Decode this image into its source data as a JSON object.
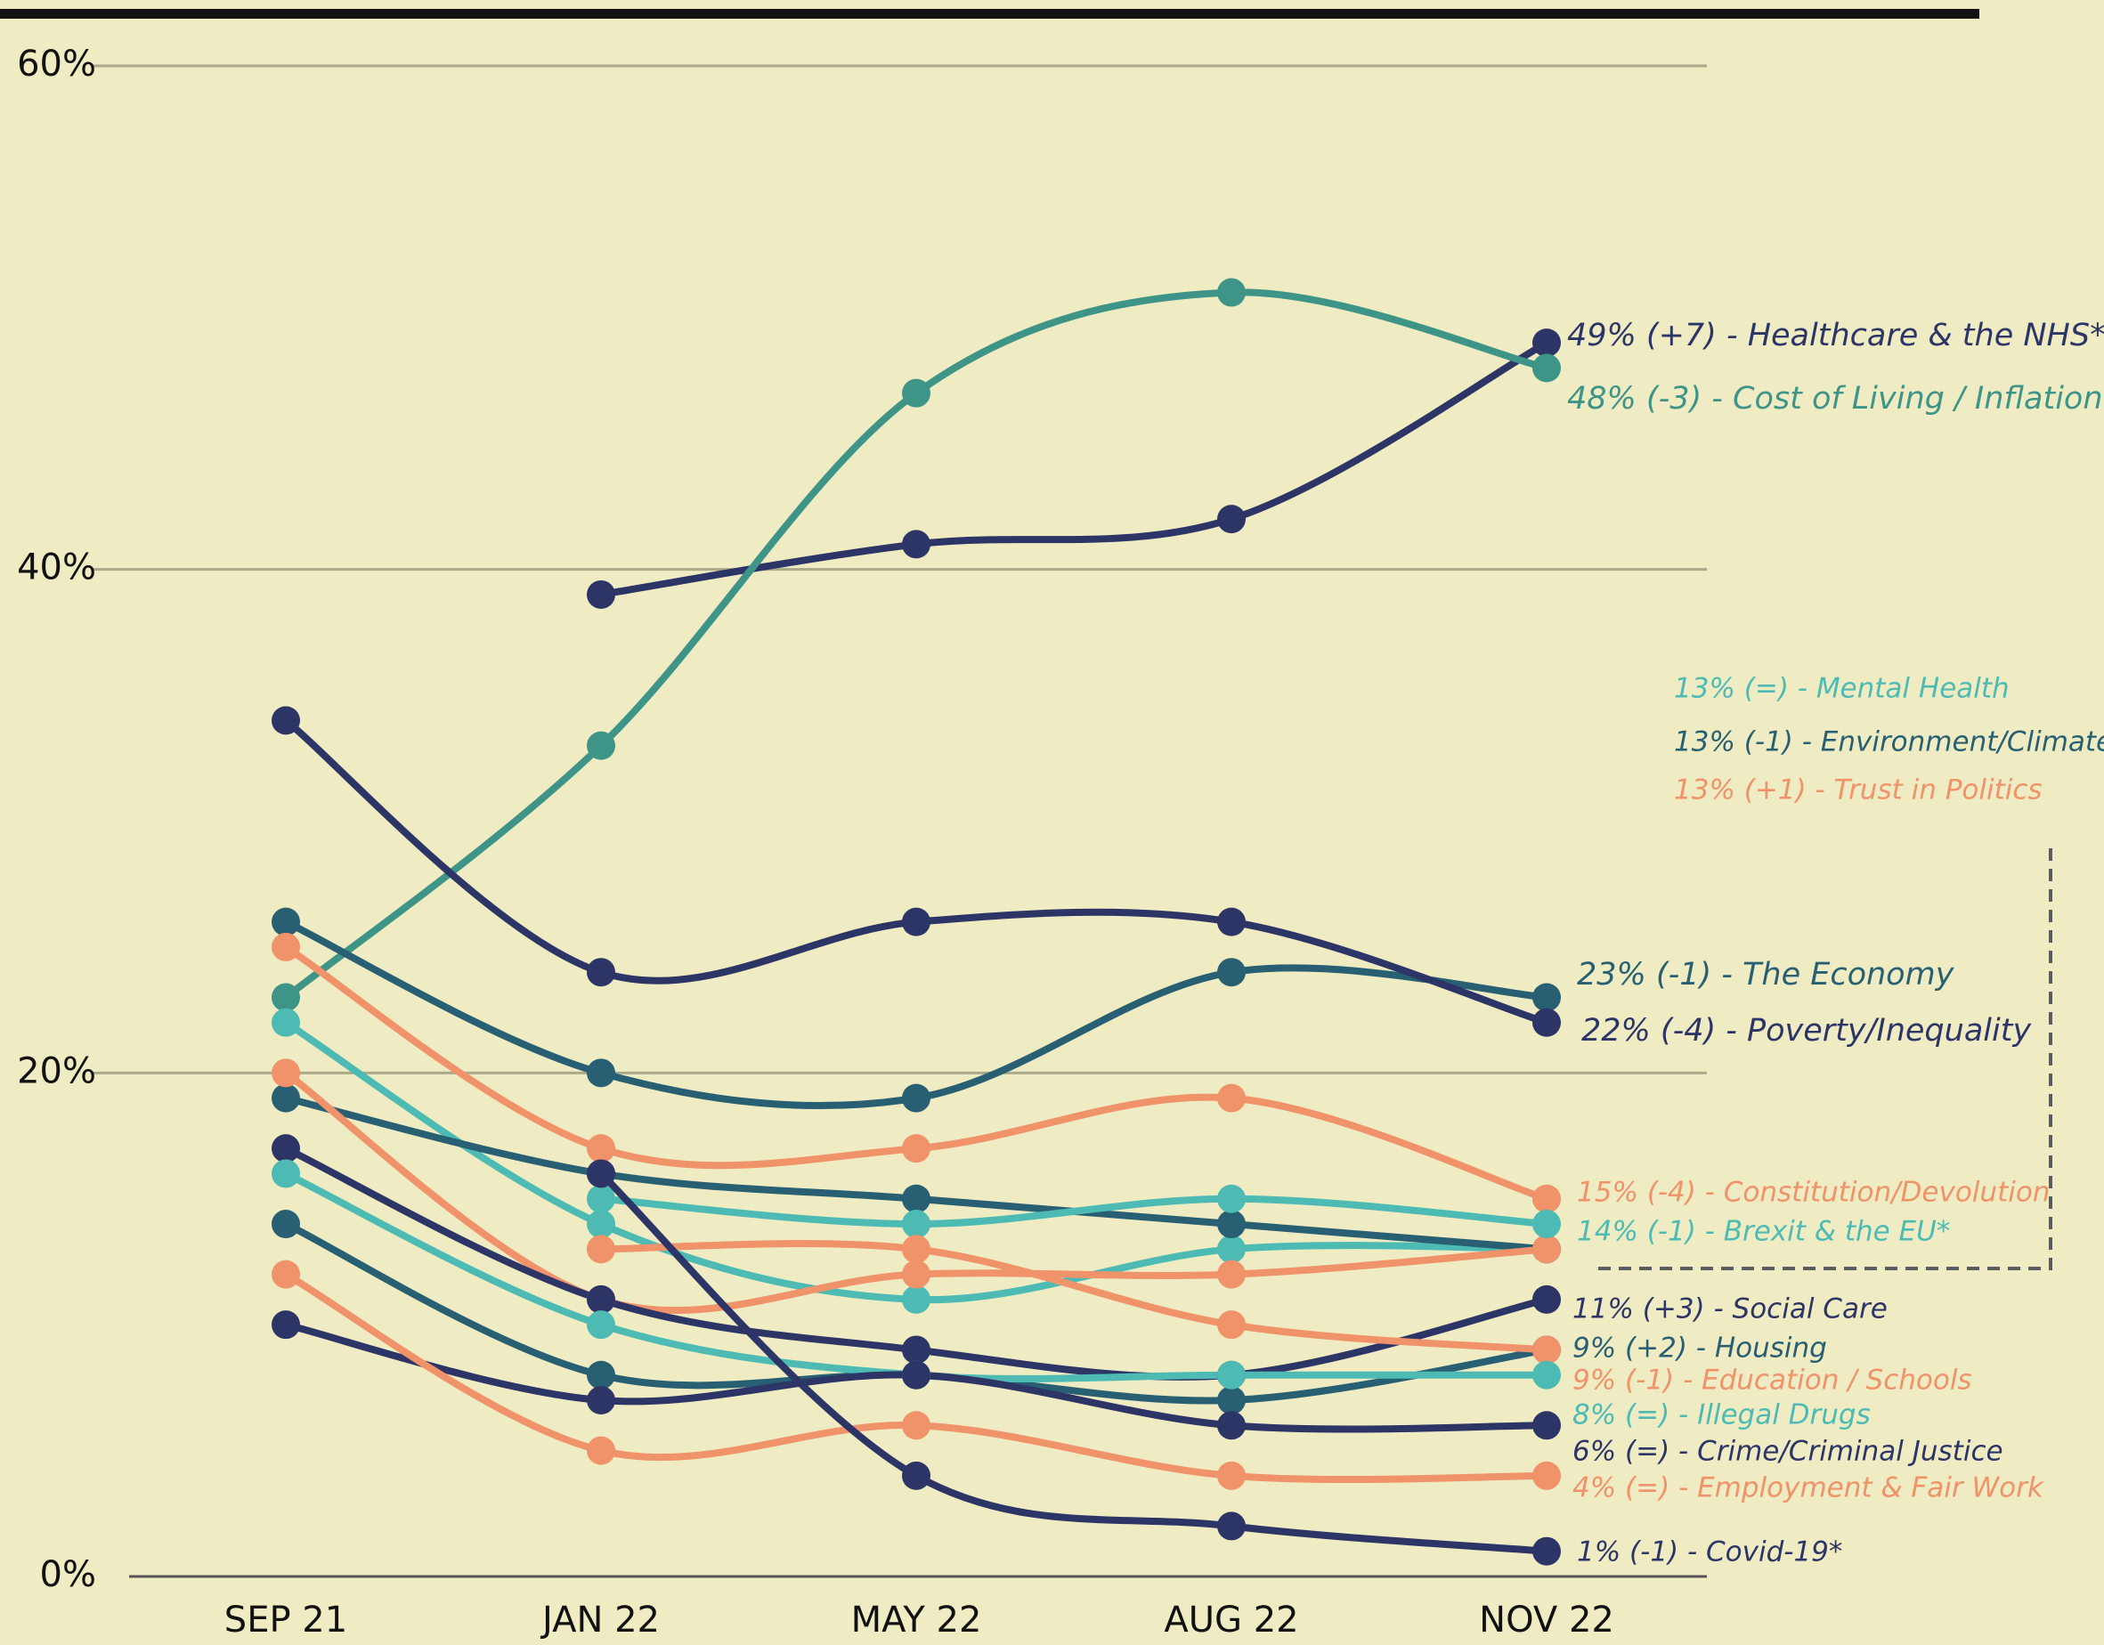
{
  "chart_data": {
    "type": "line",
    "categories": [
      "SEP 21",
      "JAN 22",
      "MAY 22",
      "AUG 22",
      "NOV 22"
    ],
    "ylim": [
      0,
      60
    ],
    "yticks": [
      {
        "value": 0,
        "label": "0%"
      },
      {
        "value": 20,
        "label": "20%"
      },
      {
        "value": 40,
        "label": "40%"
      },
      {
        "value": 60,
        "label": "60%"
      }
    ],
    "grid": true,
    "series": [
      {
        "name": "49% (+7) - Healthcare & the NHS*",
        "color": "#2d3466",
        "values": [
          null,
          39,
          41,
          42,
          49
        ]
      },
      {
        "name": "48% (-3) - Cost of Living / Inflation",
        "color": "#3f9488",
        "values": [
          23,
          33,
          47,
          51,
          48
        ]
      },
      {
        "name": "13% (=) - Mental Health",
        "color": "#4dbbb4",
        "values": [
          22,
          14,
          11,
          13,
          13
        ]
      },
      {
        "name": "13% (-1) - Environment/Climate",
        "color": "#285f72",
        "values": [
          19,
          16,
          15,
          14,
          13
        ]
      },
      {
        "name": "13% (+1) - Trust in Politics",
        "color": "#f0926a",
        "values": [
          20,
          11,
          12,
          12,
          13
        ]
      },
      {
        "name": "23% (-1) - The Economy",
        "color": "#285f72",
        "values": [
          26,
          20,
          19,
          24,
          23
        ]
      },
      {
        "name": "22% (-4) - Poverty/Inequality",
        "color": "#2d3466",
        "values": [
          34,
          24,
          26,
          26,
          22
        ]
      },
      {
        "name": "15% (-4) - Constitution/Devolution",
        "color": "#f0926a",
        "values": [
          25,
          17,
          17,
          19,
          15
        ]
      },
      {
        "name": "14% (-1) - Brexit & the EU*",
        "color": "#4dbbb4",
        "values": [
          null,
          15,
          14,
          15,
          14
        ]
      },
      {
        "name": "11% (+3) - Social Care",
        "color": "#2d3466",
        "values": [
          17,
          11,
          9,
          8,
          11
        ]
      },
      {
        "name": "9% (+2) - Housing",
        "color": "#285f72",
        "values": [
          14,
          8,
          8,
          7,
          9
        ]
      },
      {
        "name": "9% (-1) - Education / Schools",
        "color": "#f0926a",
        "values": [
          null,
          13,
          13,
          10,
          9
        ]
      },
      {
        "name": "8% (=) - Illegal Drugs",
        "color": "#4dbbb4",
        "values": [
          16,
          10,
          8,
          8,
          8
        ]
      },
      {
        "name": "6% (=) - Crime/Criminal Justice",
        "color": "#2d3466",
        "values": [
          10,
          7,
          8,
          6,
          6
        ]
      },
      {
        "name": "4% (=) - Employment & Fair Work",
        "color": "#f0926a",
        "values": [
          12,
          5,
          6,
          4,
          4
        ]
      },
      {
        "name": "1% (-1) - Covid-19*",
        "color": "#2d3466",
        "values": [
          null,
          16,
          4,
          2,
          1
        ]
      }
    ]
  }
}
